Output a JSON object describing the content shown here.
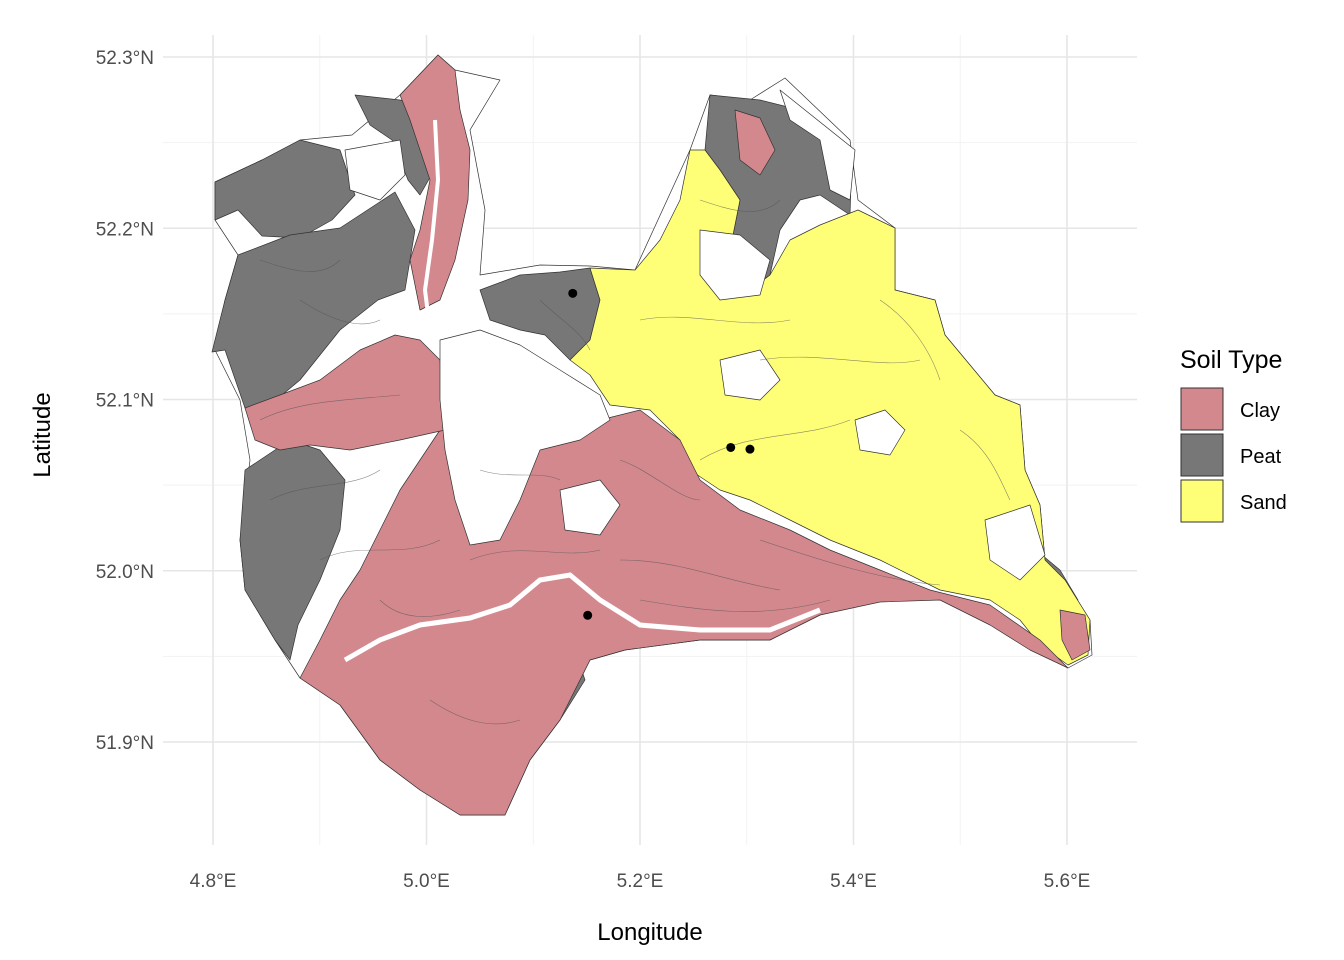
{
  "map": {
    "legend": {
      "title": "Soil Type",
      "items": [
        {
          "label": "Clay",
          "color": "#d3888e"
        },
        {
          "label": "Peat",
          "color": "#777777"
        },
        {
          "label": "Sand",
          "color": "#ffff77"
        }
      ]
    },
    "axes": {
      "x_title": "Longitude",
      "y_title": "Latitude",
      "x_ticks": [
        {
          "value": 4.8,
          "label": "4.8°E"
        },
        {
          "value": 5.0,
          "label": "5.0°E"
        },
        {
          "value": 5.2,
          "label": "5.2°E"
        },
        {
          "value": 5.4,
          "label": "5.4°E"
        },
        {
          "value": 5.6,
          "label": "5.6°E"
        }
      ],
      "y_ticks": [
        {
          "value": 51.9,
          "label": "51.9°N"
        },
        {
          "value": 52.0,
          "label": "52.0°N"
        },
        {
          "value": 52.1,
          "label": "52.1°N"
        },
        {
          "value": 52.2,
          "label": "52.2°N"
        },
        {
          "value": 52.3,
          "label": "52.3°N"
        }
      ],
      "x_range": [
        4.77,
        5.66
      ],
      "y_range": [
        51.84,
        52.32
      ]
    },
    "points": [
      {
        "lon": 5.137,
        "lat": 52.162
      },
      {
        "lon": 5.285,
        "lat": 52.072
      },
      {
        "lon": 5.303,
        "lat": 52.071
      },
      {
        "lon": 5.151,
        "lat": 51.974
      }
    ],
    "background": "#ffffff",
    "grid": true
  }
}
